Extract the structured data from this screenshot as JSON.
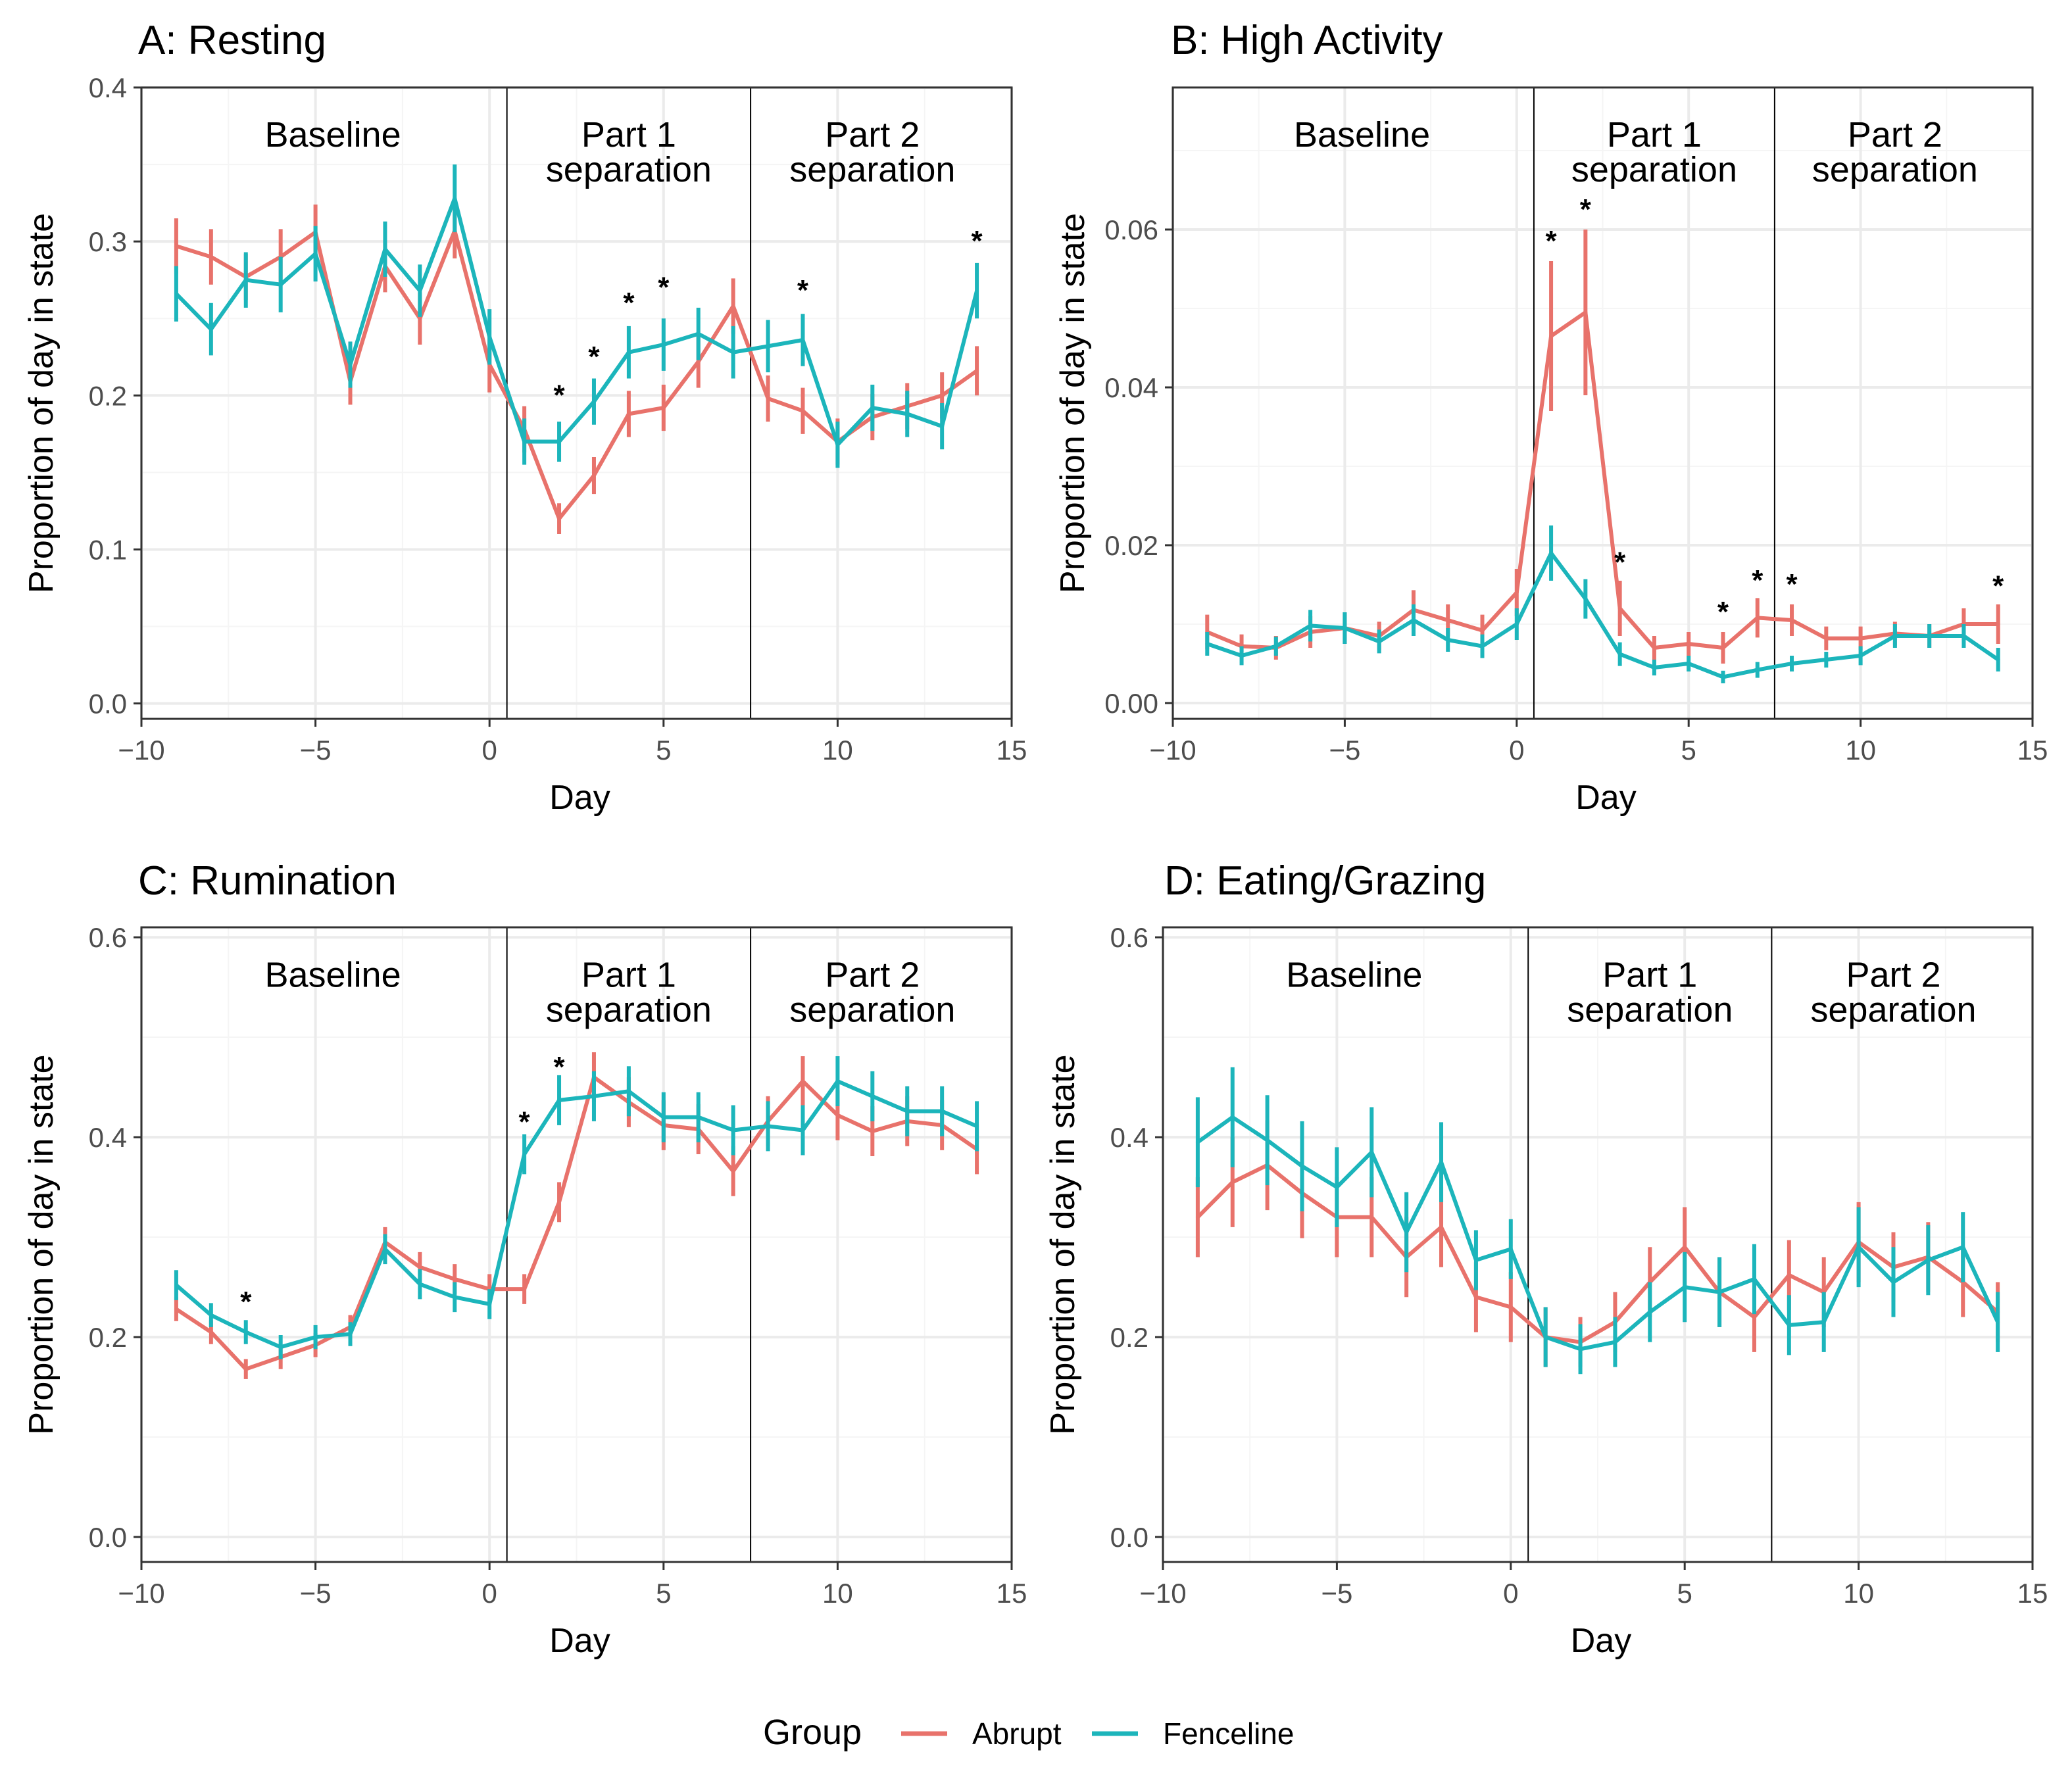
{
  "colors": {
    "abrupt": "#E8726B",
    "fenceline": "#1CB5BB",
    "grid_major": "#ebebeb",
    "grid_minor": "#f5f5f5",
    "panel_border": "#333333"
  },
  "legend": {
    "title": "Group",
    "entries": [
      "Abrupt",
      "Fenceline"
    ]
  },
  "chart_data": [
    {
      "type": "line",
      "title": "A: Resting",
      "xlabel": "Day",
      "ylabel": "Proportion of day in state",
      "xlim": [
        -10,
        15
      ],
      "ylim": [
        -0.01,
        0.4
      ],
      "xticks": [
        -10,
        -5,
        0,
        5,
        10,
        15
      ],
      "xtick_labels": [
        "−10",
        "−5",
        "0",
        "5",
        "10",
        "15"
      ],
      "yticks": [
        0.0,
        0.1,
        0.2,
        0.3,
        0.4
      ],
      "ytick_labels": [
        "0.0",
        "0.1",
        "0.2",
        "0.3",
        "0.4"
      ],
      "dividers": [
        0.5,
        7.5
      ],
      "phases": [
        {
          "lines": [
            "Baseline"
          ],
          "x": -4.5
        },
        {
          "lines": [
            "Part 1",
            "separation"
          ],
          "x": 4.0
        },
        {
          "lines": [
            "Part 2",
            "separation"
          ],
          "x": 11.0
        }
      ],
      "phase_yfrac": 0.075,
      "stars": [
        {
          "x": 2,
          "y": 0.2
        },
        {
          "x": 3,
          "y": 0.225
        },
        {
          "x": 4,
          "y": 0.26
        },
        {
          "x": 5,
          "y": 0.27
        },
        {
          "x": 9,
          "y": 0.268
        },
        {
          "x": 14,
          "y": 0.3
        }
      ],
      "series": [
        {
          "name": "Abrupt",
          "x": [
            -9,
            -8,
            -7,
            -6,
            -5,
            -4,
            -3,
            -2,
            -1,
            0,
            1,
            2,
            3,
            4,
            5,
            6,
            7,
            8,
            9,
            10,
            11,
            12,
            13,
            14
          ],
          "y": [
            0.297,
            0.29,
            0.277,
            0.29,
            0.306,
            0.209,
            0.284,
            0.25,
            0.307,
            0.22,
            0.178,
            0.12,
            0.148,
            0.188,
            0.192,
            0.222,
            0.258,
            0.198,
            0.19,
            0.17,
            0.186,
            0.193,
            0.2,
            0.216
          ],
          "err": [
            0.018,
            0.018,
            0.015,
            0.018,
            0.018,
            0.015,
            0.017,
            0.017,
            0.018,
            0.018,
            0.015,
            0.01,
            0.012,
            0.015,
            0.015,
            0.017,
            0.018,
            0.015,
            0.015,
            0.015,
            0.015,
            0.015,
            0.015,
            0.016
          ]
        },
        {
          "name": "Fenceline",
          "x": [
            -9,
            -8,
            -7,
            -6,
            -5,
            -4,
            -3,
            -2,
            -1,
            0,
            1,
            2,
            3,
            4,
            5,
            6,
            7,
            8,
            9,
            10,
            11,
            12,
            13,
            14
          ],
          "y": [
            0.266,
            0.243,
            0.275,
            0.272,
            0.292,
            0.22,
            0.295,
            0.268,
            0.328,
            0.238,
            0.17,
            0.17,
            0.196,
            0.228,
            0.233,
            0.24,
            0.228,
            0.232,
            0.236,
            0.168,
            0.192,
            0.188,
            0.18,
            0.268
          ],
          "err": [
            0.018,
            0.017,
            0.018,
            0.018,
            0.018,
            0.015,
            0.018,
            0.017,
            0.022,
            0.018,
            0.015,
            0.013,
            0.015,
            0.017,
            0.017,
            0.017,
            0.017,
            0.017,
            0.017,
            0.015,
            0.015,
            0.015,
            0.015,
            0.018
          ]
        }
      ]
    },
    {
      "type": "line",
      "title": "B: High Activity",
      "xlabel": "Day",
      "ylabel": "Proportion of day in state",
      "xlim": [
        -10,
        15
      ],
      "ylim": [
        -0.002,
        0.078
      ],
      "xticks": [
        -10,
        -5,
        0,
        5,
        10,
        15
      ],
      "xtick_labels": [
        "−10",
        "−5",
        "0",
        "5",
        "10",
        "15"
      ],
      "yticks": [
        0.0,
        0.02,
        0.04,
        0.06
      ],
      "ytick_labels": [
        "0.00",
        "0.02",
        "0.04",
        "0.06"
      ],
      "dividers": [
        0.5,
        7.5
      ],
      "phases": [
        {
          "lines": [
            "Baseline"
          ],
          "x": -4.5
        },
        {
          "lines": [
            "Part 1",
            "separation"
          ],
          "x": 4.0
        },
        {
          "lines": [
            "Part 2",
            "separation"
          ],
          "x": 11.0
        }
      ],
      "phase_yfrac": 0.075,
      "stars": [
        {
          "x": 1,
          "y": 0.0585
        },
        {
          "x": 2,
          "y": 0.0625
        },
        {
          "x": 3,
          "y": 0.0178
        },
        {
          "x": 6,
          "y": 0.0115
        },
        {
          "x": 7,
          "y": 0.0155
        },
        {
          "x": 8,
          "y": 0.015
        },
        {
          "x": 14,
          "y": 0.0148
        }
      ],
      "series": [
        {
          "name": "Abrupt",
          "x": [
            -9,
            -8,
            -7,
            -6,
            -5,
            -4,
            -3,
            -2,
            -1,
            0,
            1,
            2,
            3,
            4,
            5,
            6,
            7,
            8,
            9,
            10,
            11,
            12,
            13,
            14
          ],
          "y": [
            0.009,
            0.0072,
            0.007,
            0.009,
            0.0095,
            0.0085,
            0.0118,
            0.0105,
            0.0092,
            0.014,
            0.0465,
            0.0495,
            0.012,
            0.007,
            0.0075,
            0.007,
            0.0108,
            0.0105,
            0.0082,
            0.0082,
            0.0088,
            0.0085,
            0.01,
            0.01
          ],
          "err": [
            0.0022,
            0.0015,
            0.0015,
            0.002,
            0.002,
            0.0018,
            0.0025,
            0.002,
            0.002,
            0.003,
            0.0095,
            0.0105,
            0.0035,
            0.0015,
            0.0015,
            0.002,
            0.0025,
            0.002,
            0.0015,
            0.0015,
            0.0015,
            0.0015,
            0.002,
            0.0025
          ]
        },
        {
          "name": "Fenceline",
          "x": [
            -9,
            -8,
            -7,
            -6,
            -5,
            -4,
            -3,
            -2,
            -1,
            0,
            1,
            2,
            3,
            4,
            5,
            6,
            7,
            8,
            9,
            10,
            11,
            12,
            13,
            14
          ],
          "y": [
            0.0075,
            0.006,
            0.0072,
            0.0098,
            0.0095,
            0.0078,
            0.0105,
            0.008,
            0.0072,
            0.01,
            0.019,
            0.0132,
            0.0062,
            0.0045,
            0.005,
            0.0033,
            0.0042,
            0.005,
            0.0055,
            0.006,
            0.0085,
            0.0085,
            0.0085,
            0.0055
          ],
          "err": [
            0.0015,
            0.0012,
            0.0012,
            0.002,
            0.002,
            0.0015,
            0.002,
            0.0015,
            0.0015,
            0.002,
            0.0035,
            0.0025,
            0.0015,
            0.001,
            0.001,
            0.0008,
            0.001,
            0.001,
            0.001,
            0.0012,
            0.0015,
            0.0015,
            0.0015,
            0.0015
          ]
        }
      ]
    },
    {
      "type": "line",
      "title": "C: Rumination",
      "xlabel": "Day",
      "ylabel": "Proportion of day in state",
      "xlim": [
        -10,
        15
      ],
      "ylim": [
        -0.025,
        0.61
      ],
      "xticks": [
        -10,
        -5,
        0,
        5,
        10,
        15
      ],
      "xtick_labels": [
        "−10",
        "−5",
        "0",
        "5",
        "10",
        "15"
      ],
      "yticks": [
        0.0,
        0.2,
        0.4,
        0.6
      ],
      "ytick_labels": [
        "0.0",
        "0.2",
        "0.4",
        "0.6"
      ],
      "dividers": [
        0.5,
        7.5
      ],
      "phases": [
        {
          "lines": [
            "Baseline"
          ],
          "x": -4.5
        },
        {
          "lines": [
            "Part 1",
            "separation"
          ],
          "x": 4.0
        },
        {
          "lines": [
            "Part 2",
            "separation"
          ],
          "x": 11.0
        }
      ],
      "phase_yfrac": 0.075,
      "stars": [
        {
          "x": -7,
          "y": 0.235
        },
        {
          "x": 1,
          "y": 0.415
        },
        {
          "x": 2,
          "y": 0.47
        }
      ],
      "series": [
        {
          "name": "Abrupt",
          "x": [
            -9,
            -8,
            -7,
            -6,
            -5,
            -4,
            -3,
            -2,
            -1,
            0,
            1,
            2,
            3,
            4,
            5,
            6,
            7,
            8,
            9,
            10,
            11,
            12,
            13,
            14
          ],
          "y": [
            0.228,
            0.205,
            0.168,
            0.18,
            0.192,
            0.21,
            0.295,
            0.27,
            0.258,
            0.248,
            0.248,
            0.335,
            0.46,
            0.435,
            0.412,
            0.408,
            0.366,
            0.416,
            0.456,
            0.422,
            0.406,
            0.416,
            0.412,
            0.388
          ],
          "err": [
            0.012,
            0.012,
            0.01,
            0.012,
            0.012,
            0.012,
            0.015,
            0.015,
            0.015,
            0.015,
            0.015,
            0.02,
            0.025,
            0.025,
            0.025,
            0.025,
            0.025,
            0.025,
            0.025,
            0.025,
            0.025,
            0.025,
            0.025,
            0.025
          ]
        },
        {
          "name": "Fenceline",
          "x": [
            -9,
            -8,
            -7,
            -6,
            -5,
            -4,
            -3,
            -2,
            -1,
            0,
            1,
            2,
            3,
            4,
            5,
            6,
            7,
            8,
            9,
            10,
            11,
            12,
            13,
            14
          ],
          "y": [
            0.252,
            0.222,
            0.205,
            0.19,
            0.2,
            0.203,
            0.288,
            0.253,
            0.24,
            0.233,
            0.383,
            0.437,
            0.441,
            0.446,
            0.42,
            0.42,
            0.407,
            0.411,
            0.407,
            0.456,
            0.441,
            0.426,
            0.426,
            0.411
          ],
          "err": [
            0.015,
            0.012,
            0.012,
            0.012,
            0.012,
            0.012,
            0.015,
            0.015,
            0.015,
            0.015,
            0.02,
            0.025,
            0.025,
            0.025,
            0.025,
            0.025,
            0.025,
            0.025,
            0.025,
            0.025,
            0.025,
            0.025,
            0.025,
            0.025
          ]
        }
      ]
    },
    {
      "type": "line",
      "title": "D: Eating/Grazing",
      "xlabel": "Day",
      "ylabel": "Proportion of day in state",
      "xlim": [
        -10,
        15
      ],
      "ylim": [
        -0.025,
        0.61
      ],
      "xticks": [
        -10,
        -5,
        0,
        5,
        10,
        15
      ],
      "xtick_labels": [
        "−10",
        "−5",
        "0",
        "5",
        "10",
        "15"
      ],
      "yticks": [
        0.0,
        0.2,
        0.4,
        0.6
      ],
      "ytick_labels": [
        "0.0",
        "0.2",
        "0.4",
        "0.6"
      ],
      "dividers": [
        0.5,
        7.5
      ],
      "phases": [
        {
          "lines": [
            "Baseline"
          ],
          "x": -4.5
        },
        {
          "lines": [
            "Part 1",
            "separation"
          ],
          "x": 4.0
        },
        {
          "lines": [
            "Part 2",
            "separation"
          ],
          "x": 11.0
        }
      ],
      "phase_yfrac": 0.075,
      "stars": [],
      "series": [
        {
          "name": "Abrupt",
          "x": [
            -9,
            -8,
            -7,
            -6,
            -5,
            -4,
            -3,
            -2,
            -1,
            0,
            1,
            2,
            3,
            4,
            5,
            6,
            7,
            8,
            9,
            10,
            11,
            12,
            13,
            14
          ],
          "y": [
            0.32,
            0.355,
            0.372,
            0.344,
            0.32,
            0.32,
            0.28,
            0.31,
            0.24,
            0.23,
            0.2,
            0.195,
            0.215,
            0.255,
            0.29,
            0.245,
            0.22,
            0.262,
            0.245,
            0.295,
            0.27,
            0.28,
            0.255,
            0.225
          ],
          "err": [
            0.04,
            0.045,
            0.045,
            0.045,
            0.04,
            0.04,
            0.04,
            0.04,
            0.035,
            0.035,
            0.03,
            0.025,
            0.03,
            0.035,
            0.04,
            0.035,
            0.035,
            0.035,
            0.035,
            0.04,
            0.035,
            0.035,
            0.035,
            0.03
          ]
        },
        {
          "name": "Fenceline",
          "x": [
            -9,
            -8,
            -7,
            -6,
            -5,
            -4,
            -3,
            -2,
            -1,
            0,
            1,
            2,
            3,
            4,
            5,
            6,
            7,
            8,
            9,
            10,
            11,
            12,
            13,
            14
          ],
          "y": [
            0.395,
            0.42,
            0.397,
            0.371,
            0.35,
            0.385,
            0.305,
            0.375,
            0.277,
            0.288,
            0.2,
            0.188,
            0.195,
            0.225,
            0.25,
            0.245,
            0.258,
            0.212,
            0.215,
            0.29,
            0.255,
            0.277,
            0.29,
            0.215
          ],
          "err": [
            0.045,
            0.05,
            0.045,
            0.045,
            0.04,
            0.045,
            0.04,
            0.04,
            0.03,
            0.03,
            0.03,
            0.025,
            0.025,
            0.03,
            0.035,
            0.035,
            0.035,
            0.03,
            0.03,
            0.04,
            0.035,
            0.035,
            0.035,
            0.03
          ]
        }
      ]
    }
  ]
}
